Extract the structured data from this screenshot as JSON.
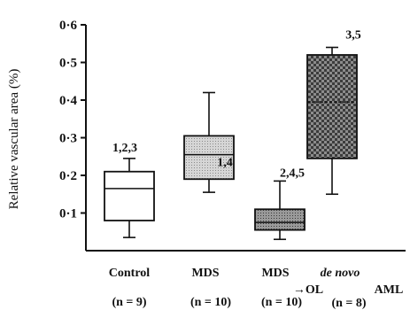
{
  "chart_data": {
    "type": "box",
    "ylabel": "Relative vascular area (%)",
    "ylim": [
      0,
      0.6
    ],
    "yticks": [
      "0·1",
      "0·2",
      "0·3",
      "0·4",
      "0·5",
      "0·6"
    ],
    "ytick_values": [
      0.1,
      0.2,
      0.3,
      0.4,
      0.5,
      0.6
    ],
    "grid": false,
    "groups": [
      {
        "label": "Control",
        "label_line2": "",
        "n_label": "(n = 9)",
        "annotation": "1,2,3",
        "whisker_low": 0.035,
        "q1": 0.08,
        "median": 0.165,
        "q3": 0.21,
        "whisker_high": 0.245,
        "fill": "white"
      },
      {
        "label": "MDS",
        "label_line2": "",
        "n_label": "(n = 10)",
        "annotation": "1,4",
        "whisker_low": 0.155,
        "q1": 0.19,
        "median": 0.255,
        "q3": 0.305,
        "whisker_high": 0.42,
        "fill": "light-dotted"
      },
      {
        "label": "MDS",
        "label_line2": "→OL",
        "n_label": "(n = 10)",
        "annotation": "2,4,5",
        "whisker_low": 0.03,
        "q1": 0.055,
        "median": 0.075,
        "q3": 0.11,
        "whisker_high": 0.185,
        "fill": "dark-dotted"
      },
      {
        "label": "de novo",
        "label_line2": "AML",
        "n_label": "(n = 8)",
        "annotation": "3,5",
        "whisker_low": 0.15,
        "q1": 0.245,
        "median": 0.395,
        "q3": 0.52,
        "whisker_high": 0.54,
        "fill": "checkered"
      }
    ]
  }
}
